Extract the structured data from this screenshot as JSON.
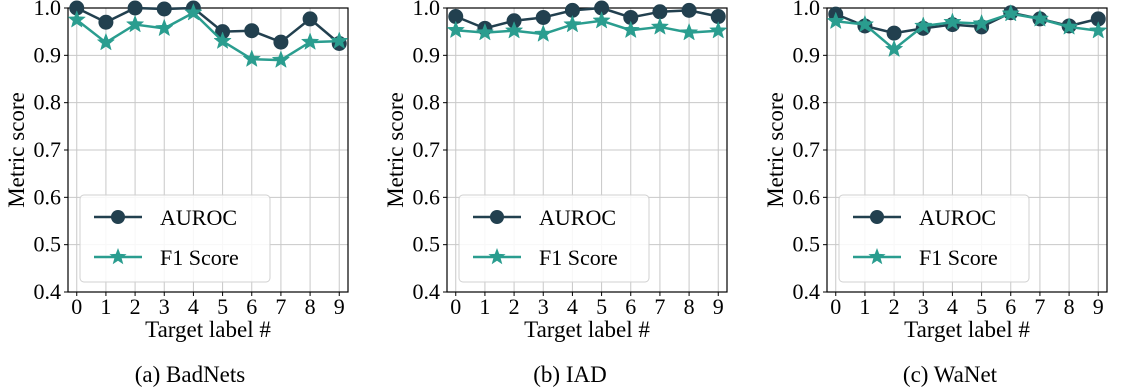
{
  "colors": {
    "auroc": "#22404f",
    "f1": "#2a9d8f",
    "grid": "#c8c8c8",
    "axis": "#000000"
  },
  "chart_data": [
    {
      "type": "line",
      "caption": "(a) BadNets",
      "xlabel": "Target label #",
      "ylabel": "Metric score",
      "x": [
        0,
        1,
        2,
        3,
        4,
        5,
        6,
        7,
        8,
        9
      ],
      "ylim": [
        0.4,
        1.0
      ],
      "yticks": [
        "0.4",
        "0.5",
        "0.6",
        "0.7",
        "0.8",
        "0.9",
        "1.0"
      ],
      "grid": true,
      "legend": "lower-left",
      "series": [
        {
          "name": "AUROC",
          "marker": "circle",
          "values": [
            1.0,
            0.97,
            1.0,
            0.998,
            1.0,
            0.95,
            0.952,
            0.928,
            0.977,
            0.925
          ]
        },
        {
          "name": "F1 Score",
          "marker": "star",
          "values": [
            0.975,
            0.927,
            0.965,
            0.957,
            0.99,
            0.93,
            0.892,
            0.89,
            0.928,
            0.93
          ]
        }
      ]
    },
    {
      "type": "line",
      "caption": "(b) IAD",
      "xlabel": "Target label #",
      "ylabel": "Metric score",
      "x": [
        0,
        1,
        2,
        3,
        4,
        5,
        6,
        7,
        8,
        9
      ],
      "ylim": [
        0.4,
        1.0
      ],
      "yticks": [
        "0.4",
        "0.5",
        "0.6",
        "0.7",
        "0.8",
        "0.9",
        "1.0"
      ],
      "grid": true,
      "legend": "lower-left",
      "series": [
        {
          "name": "AUROC",
          "marker": "circle",
          "values": [
            0.982,
            0.957,
            0.973,
            0.98,
            0.995,
            1.0,
            0.98,
            0.992,
            0.995,
            0.982
          ]
        },
        {
          "name": "F1 Score",
          "marker": "star",
          "values": [
            0.953,
            0.948,
            0.952,
            0.945,
            0.965,
            0.973,
            0.953,
            0.96,
            0.948,
            0.952
          ]
        }
      ]
    },
    {
      "type": "line",
      "caption": "(c) WaNet",
      "xlabel": "Target label #",
      "ylabel": "Metric score",
      "x": [
        0,
        1,
        2,
        3,
        4,
        5,
        6,
        7,
        8,
        9
      ],
      "ylim": [
        0.4,
        1.0
      ],
      "yticks": [
        "0.4",
        "0.5",
        "0.6",
        "0.7",
        "0.8",
        "0.9",
        "1.0"
      ],
      "grid": true,
      "legend": "lower-left",
      "series": [
        {
          "name": "AUROC",
          "marker": "circle",
          "values": [
            0.987,
            0.962,
            0.947,
            0.957,
            0.965,
            0.96,
            0.99,
            0.977,
            0.962,
            0.977
          ]
        },
        {
          "name": "F1 Score",
          "marker": "star",
          "values": [
            0.972,
            0.965,
            0.913,
            0.962,
            0.97,
            0.967,
            0.988,
            0.977,
            0.96,
            0.952
          ]
        }
      ]
    }
  ]
}
